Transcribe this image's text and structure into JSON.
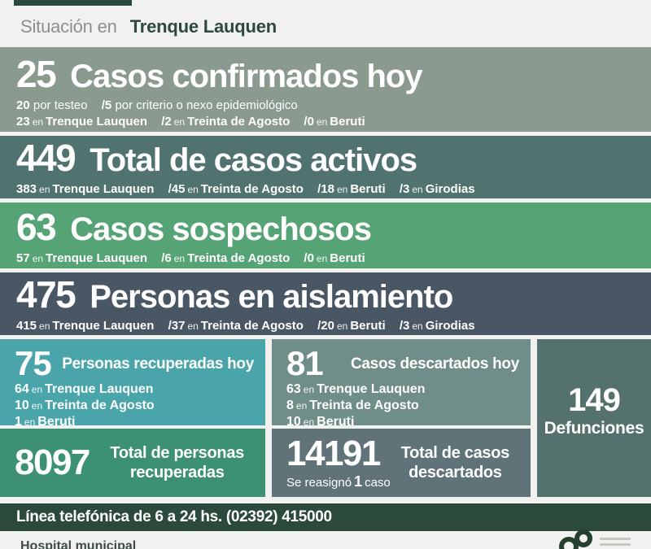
{
  "labels": {
    "en": "en"
  },
  "header": {
    "prefix": "Situación en",
    "location": "Trenque Lauquen"
  },
  "colors": {
    "accent_dark_green": "#2b4a3c",
    "band_confirmed": "#8a9a8f",
    "band_active": "#507370",
    "band_suspected": "#56a475",
    "band_isolation": "#495663",
    "box_recovered_today": "#4aa5ab",
    "box_discarded_today": "#6f8e89",
    "box_deaths": "#54716d",
    "box_recovered_total": "#3b9171",
    "box_discarded_total": "#5f7379",
    "background": "#f1f2f0"
  },
  "bands": [
    {
      "value": "25",
      "title": "Casos confirmados hoy",
      "method_line": [
        {
          "n": "20",
          "t": "por testeo"
        },
        {
          "n": "/5",
          "t": "por criterio o nexo epidemiológico"
        }
      ],
      "geo_line": [
        {
          "n": "23",
          "place": "Trenque Lauquen"
        },
        {
          "n": "/2",
          "place": "Treinta de Agosto"
        },
        {
          "n": "/0",
          "place": "Beruti"
        }
      ]
    },
    {
      "value": "449",
      "title": "Total de casos activos",
      "geo_line": [
        {
          "n": "383",
          "place": "Trenque Lauquen"
        },
        {
          "n": "/45",
          "place": "Treinta de Agosto"
        },
        {
          "n": "/18",
          "place": "Beruti"
        },
        {
          "n": "/3",
          "place": "Girodias"
        }
      ]
    },
    {
      "value": "63",
      "title": "Casos sospechosos",
      "geo_line": [
        {
          "n": "57",
          "place": "Trenque Lauquen"
        },
        {
          "n": "/6",
          "place": "Treinta de Agosto"
        },
        {
          "n": "/0",
          "place": "Beruti"
        }
      ]
    },
    {
      "value": "475",
      "title": "Personas en aislamiento",
      "geo_line": [
        {
          "n": "415",
          "place": "Trenque Lauquen"
        },
        {
          "n": "/37",
          "place": "Treinta de Agosto"
        },
        {
          "n": "/20",
          "place": "Beruti"
        },
        {
          "n": "/3",
          "place": "Girodias"
        }
      ]
    }
  ],
  "boxes": {
    "recovered_today": {
      "value": "75",
      "title": "Personas recuperadas hoy",
      "geo": [
        {
          "n": "64",
          "place": "Trenque Lauquen"
        },
        {
          "n": "10",
          "place": "Treinta de Agosto"
        },
        {
          "n": "1",
          "place": "Beruti"
        }
      ]
    },
    "discarded_today": {
      "value": "81",
      "title": "Casos descartados hoy",
      "geo": [
        {
          "n": "63",
          "place": "Trenque Lauquen"
        },
        {
          "n": "8",
          "place": "Treinta de Agosto"
        },
        {
          "n": "10",
          "place": "Beruti"
        }
      ]
    },
    "deaths": {
      "value": "149",
      "label": "Defunciones"
    },
    "recovered_total": {
      "value": "8097",
      "title_line1": "Total de personas",
      "title_line2": "recuperadas"
    },
    "discarded_total": {
      "value": "14191",
      "title_line1": "Total de casos",
      "title_line2": "descartados",
      "note_pre": "Se reasignó",
      "note_num": "1",
      "note_post": "caso"
    }
  },
  "footer": {
    "phone_line": "Línea telefónica de 6 a 24 hs. (02392) 415000"
  },
  "bottom": {
    "hospital": "Hospital municipal"
  }
}
